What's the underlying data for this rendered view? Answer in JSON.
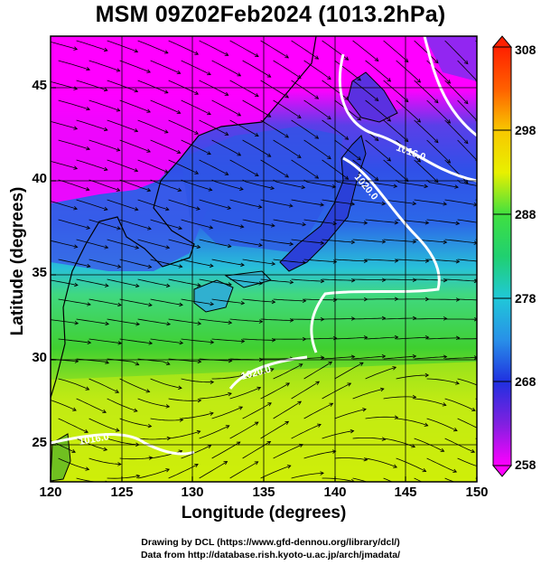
{
  "title": "MSM 09Z02Feb2024 (1013.2hPa)",
  "map": {
    "xlabel": "Longitude (degrees)",
    "ylabel": "Latitude  (degrees)",
    "lon_range": [
      120,
      150
    ],
    "lat_range": [
      22.4,
      47.6
    ],
    "x_ticks": [
      "120",
      "125",
      "130",
      "135",
      "140",
      "145",
      "150"
    ],
    "y_ticks": [
      "25",
      "30",
      "35",
      "40",
      "45"
    ],
    "contour_labels": [
      "1016.0",
      "1020.0",
      "1020.0",
      "1016.0"
    ],
    "colors": {
      "cold": "#ff00ff",
      "mid_cold": "#2040e0",
      "mid": "#20c0d0",
      "mid_warm": "#30d040",
      "warm": "#e8f000"
    }
  },
  "colorbar": {
    "ticks": [
      "308",
      "298",
      "288",
      "278",
      "268",
      "258"
    ],
    "min": 258,
    "max": 308
  },
  "credits": {
    "line1": "Drawing by DCL (https://www.gfd-dennou.org/library/dcl/)",
    "line2": "Data from http://database.rish.kyoto-u.ac.jp/arch/jmadata/"
  }
}
